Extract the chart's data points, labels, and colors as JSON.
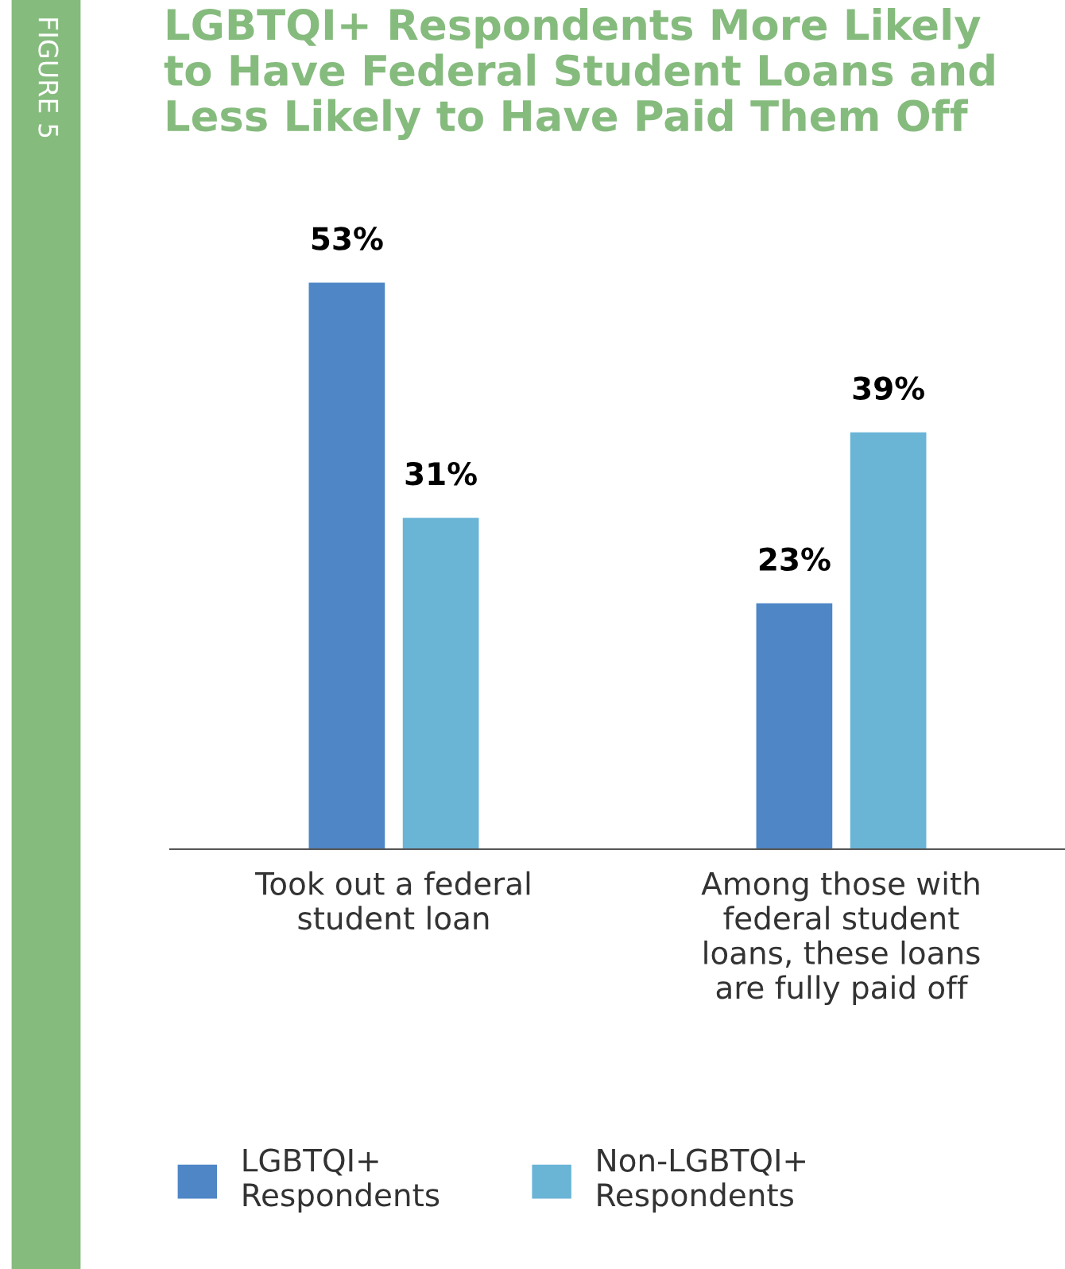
{
  "chart_data": {
    "type": "bar",
    "title": "LGBTQI+ Respondents More Likely\nto Have Federal Student Loans and\nLess Likely to Have Paid Them Off",
    "annotations": [
      "FIGURE 5"
    ],
    "categories": [
      "Took out a federal\nstudent loan",
      "Among those with\nfederal student\nloans, these loans\nare fully paid off"
    ],
    "series": [
      {
        "name": "LGBTQI+\nRespondents",
        "color": "#4e86c6",
        "values": [
          53,
          23
        ],
        "value_labels": [
          "53%",
          "23%"
        ]
      },
      {
        "name": "Non-LGBTQI+\nRespondents",
        "color": "#6ab4d6",
        "values": [
          31,
          39
        ],
        "value_labels": [
          "31%",
          "39%"
        ]
      }
    ],
    "grid": false,
    "legend": "bottom",
    "tick_labels": "x"
  }
}
